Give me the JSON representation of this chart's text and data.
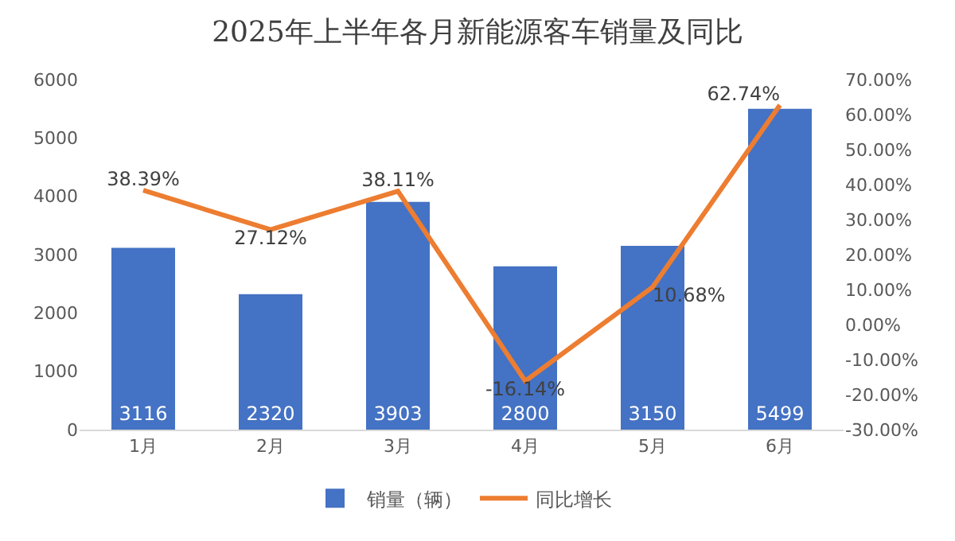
{
  "chart_data": {
    "type": "bar",
    "title": "2025年上半年各月新能源客车销量及同比",
    "categories": [
      "1月",
      "2月",
      "3月",
      "4月",
      "5月",
      "6月"
    ],
    "series": [
      {
        "name": "销量（辆）",
        "color": "#4472c4",
        "values": [
          3116,
          2320,
          3903,
          2800,
          3150,
          5499
        ],
        "value_labels": [
          "3116",
          "2320",
          "3903",
          "2800",
          "3150",
          "5499"
        ]
      },
      {
        "name": "同比增长",
        "type": "line",
        "axis": "y2",
        "color": "#ed7d31",
        "values": [
          38.39,
          27.12,
          38.11,
          -16.14,
          10.68,
          62.74
        ],
        "value_labels": [
          "38.39%",
          "27.12%",
          "38.11%",
          "-16.14%",
          "10.68%",
          "62.74%"
        ]
      }
    ],
    "ylim": [
      0,
      6000
    ],
    "yticks": [
      0,
      1000,
      2000,
      3000,
      4000,
      5000,
      6000
    ],
    "y2lim": [
      -30,
      70
    ],
    "y2ticks": [
      {
        "value": -30,
        "label": "-30.00%"
      },
      {
        "value": -20,
        "label": "-20.00%"
      },
      {
        "value": -10,
        "label": "-10.00%"
      },
      {
        "value": 0,
        "label": "0.00%"
      },
      {
        "value": 10,
        "label": "10.00%"
      },
      {
        "value": 20,
        "label": "20.00%"
      },
      {
        "value": 30,
        "label": "30.00%"
      },
      {
        "value": 40,
        "label": "40.00%"
      },
      {
        "value": 50,
        "label": "50.00%"
      },
      {
        "value": 60,
        "label": "60.00%"
      },
      {
        "value": 70,
        "label": "70.00%"
      }
    ],
    "grid": false,
    "legend": "bottom",
    "marker": "none",
    "line_style": "solid"
  }
}
